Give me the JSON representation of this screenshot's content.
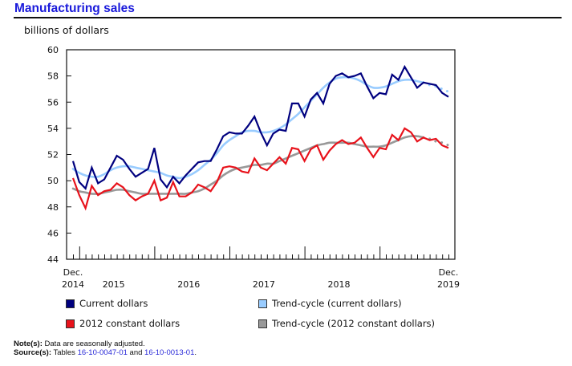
{
  "header": {
    "title": "Manufacturing sales",
    "unit": "billions of dollars"
  },
  "chart_data": {
    "type": "line",
    "title": "Manufacturing sales",
    "ylabel": "billions of dollars",
    "xlabel": "",
    "ylim": [
      44,
      60
    ],
    "yticks": [
      44,
      46,
      48,
      50,
      52,
      54,
      56,
      58,
      60
    ],
    "grid": false,
    "x_start": "Dec. 2014",
    "x_end": "Dec. 2019",
    "frequency": "monthly",
    "x_tick_labels": [
      {
        "line1": "Dec.",
        "line2": "2014",
        "month_index": 0
      },
      {
        "line1": "",
        "line2": "2015",
        "month_index": 6.5
      },
      {
        "line1": "",
        "line2": "2016",
        "month_index": 18.5
      },
      {
        "line1": "",
        "line2": "2017",
        "month_index": 30.5
      },
      {
        "line1": "",
        "line2": "2018",
        "month_index": 42.5
      },
      {
        "line1": "Dec.",
        "line2": "2019",
        "month_index": 60
      }
    ],
    "major_ticks_month_index": [
      1,
      13,
      25,
      37,
      49
    ],
    "legend_placement": "bottom",
    "series": [
      {
        "name": "Current dollars",
        "color": "#00007f",
        "style": "solid",
        "values": [
          51.5,
          49.9,
          49.4,
          51.0,
          49.8,
          50.1,
          51.0,
          51.9,
          51.6,
          50.9,
          50.3,
          50.6,
          50.9,
          52.5,
          50.1,
          49.5,
          50.3,
          49.8,
          50.4,
          50.9,
          51.4,
          51.5,
          51.5,
          52.4,
          53.4,
          53.7,
          53.6,
          53.6,
          54.2,
          54.9,
          53.7,
          52.7,
          53.6,
          53.9,
          53.8,
          55.9,
          55.9,
          54.9,
          56.2,
          56.7,
          55.9,
          57.4,
          58.0,
          58.2,
          57.9,
          58.0,
          58.2,
          57.2,
          56.3,
          56.7,
          56.6,
          58.1,
          57.7,
          58.7,
          57.9,
          57.1,
          57.5,
          57.4,
          57.3,
          56.7,
          56.4
        ]
      },
      {
        "name": "2012 constant dollars",
        "color": "#e8121b",
        "style": "solid",
        "values": [
          50.2,
          48.9,
          47.9,
          49.6,
          48.9,
          49.2,
          49.3,
          49.8,
          49.5,
          48.9,
          48.5,
          48.8,
          49.0,
          50.0,
          48.5,
          48.7,
          49.9,
          48.8,
          48.8,
          49.1,
          49.7,
          49.5,
          49.2,
          49.9,
          51.0,
          51.1,
          51.0,
          50.7,
          50.6,
          51.7,
          51.0,
          50.8,
          51.3,
          51.8,
          51.3,
          52.5,
          52.4,
          51.5,
          52.4,
          52.7,
          51.6,
          52.3,
          52.8,
          53.1,
          52.8,
          52.9,
          53.3,
          52.5,
          51.8,
          52.5,
          52.4,
          53.5,
          53.1,
          54.0,
          53.7,
          53.0,
          53.3,
          53.1,
          53.2,
          52.7,
          52.5
        ]
      },
      {
        "name": "Trend-cycle (current dollars)",
        "color": "#99ccff",
        "style": "smooth, dotted final months",
        "dotted_from_index": 56,
        "values": [
          50.9,
          50.6,
          50.4,
          50.3,
          50.3,
          50.5,
          50.8,
          51.0,
          51.1,
          51.1,
          51.0,
          50.9,
          50.8,
          50.7,
          50.6,
          50.4,
          50.3,
          50.2,
          50.3,
          50.5,
          50.8,
          51.2,
          51.6,
          52.1,
          52.7,
          53.1,
          53.4,
          53.7,
          53.8,
          53.8,
          53.7,
          53.7,
          53.8,
          54.0,
          54.3,
          54.7,
          55.1,
          55.6,
          56.1,
          56.6,
          57.1,
          57.5,
          57.8,
          57.9,
          57.9,
          57.8,
          57.6,
          57.3,
          57.1,
          57.1,
          57.2,
          57.4,
          57.6,
          57.7,
          57.7,
          57.6,
          57.5,
          57.3,
          57.2,
          57.0,
          56.8
        ]
      },
      {
        "name": "Trend-cycle (2012 constant dollars)",
        "color": "#999999",
        "style": "smooth, dotted final months",
        "dotted_from_index": 56,
        "values": [
          49.4,
          49.2,
          49.1,
          49.0,
          49.0,
          49.1,
          49.2,
          49.3,
          49.3,
          49.2,
          49.1,
          49.0,
          49.0,
          49.0,
          49.0,
          49.0,
          49.0,
          49.0,
          49.0,
          49.1,
          49.2,
          49.4,
          49.7,
          50.0,
          50.4,
          50.7,
          50.9,
          51.0,
          51.1,
          51.2,
          51.2,
          51.3,
          51.3,
          51.5,
          51.7,
          51.9,
          52.1,
          52.3,
          52.5,
          52.7,
          52.8,
          52.9,
          52.9,
          52.9,
          52.9,
          52.8,
          52.7,
          52.6,
          52.6,
          52.6,
          52.7,
          52.9,
          53.1,
          53.3,
          53.4,
          53.4,
          53.3,
          53.2,
          53.0,
          52.9,
          52.7
        ]
      }
    ]
  },
  "legend": [
    {
      "label": "Current dollars",
      "color": "#00007f"
    },
    {
      "label": "Trend-cycle (current dollars)",
      "color": "#99ccff"
    },
    {
      "label": "2012 constant dollars",
      "color": "#e8121b"
    },
    {
      "label": "Trend-cycle (2012 constant dollars)",
      "color": "#999999"
    }
  ],
  "footer": {
    "notes_label": "Note(s):",
    "notes_text": "Data are seasonally adjusted.",
    "source_label": "Source(s):",
    "source_prefix": "Tables",
    "source_link1": "16-10-0047-01",
    "source_and": "and",
    "source_link2": "16-10-0013-01",
    "source_suffix": "."
  }
}
